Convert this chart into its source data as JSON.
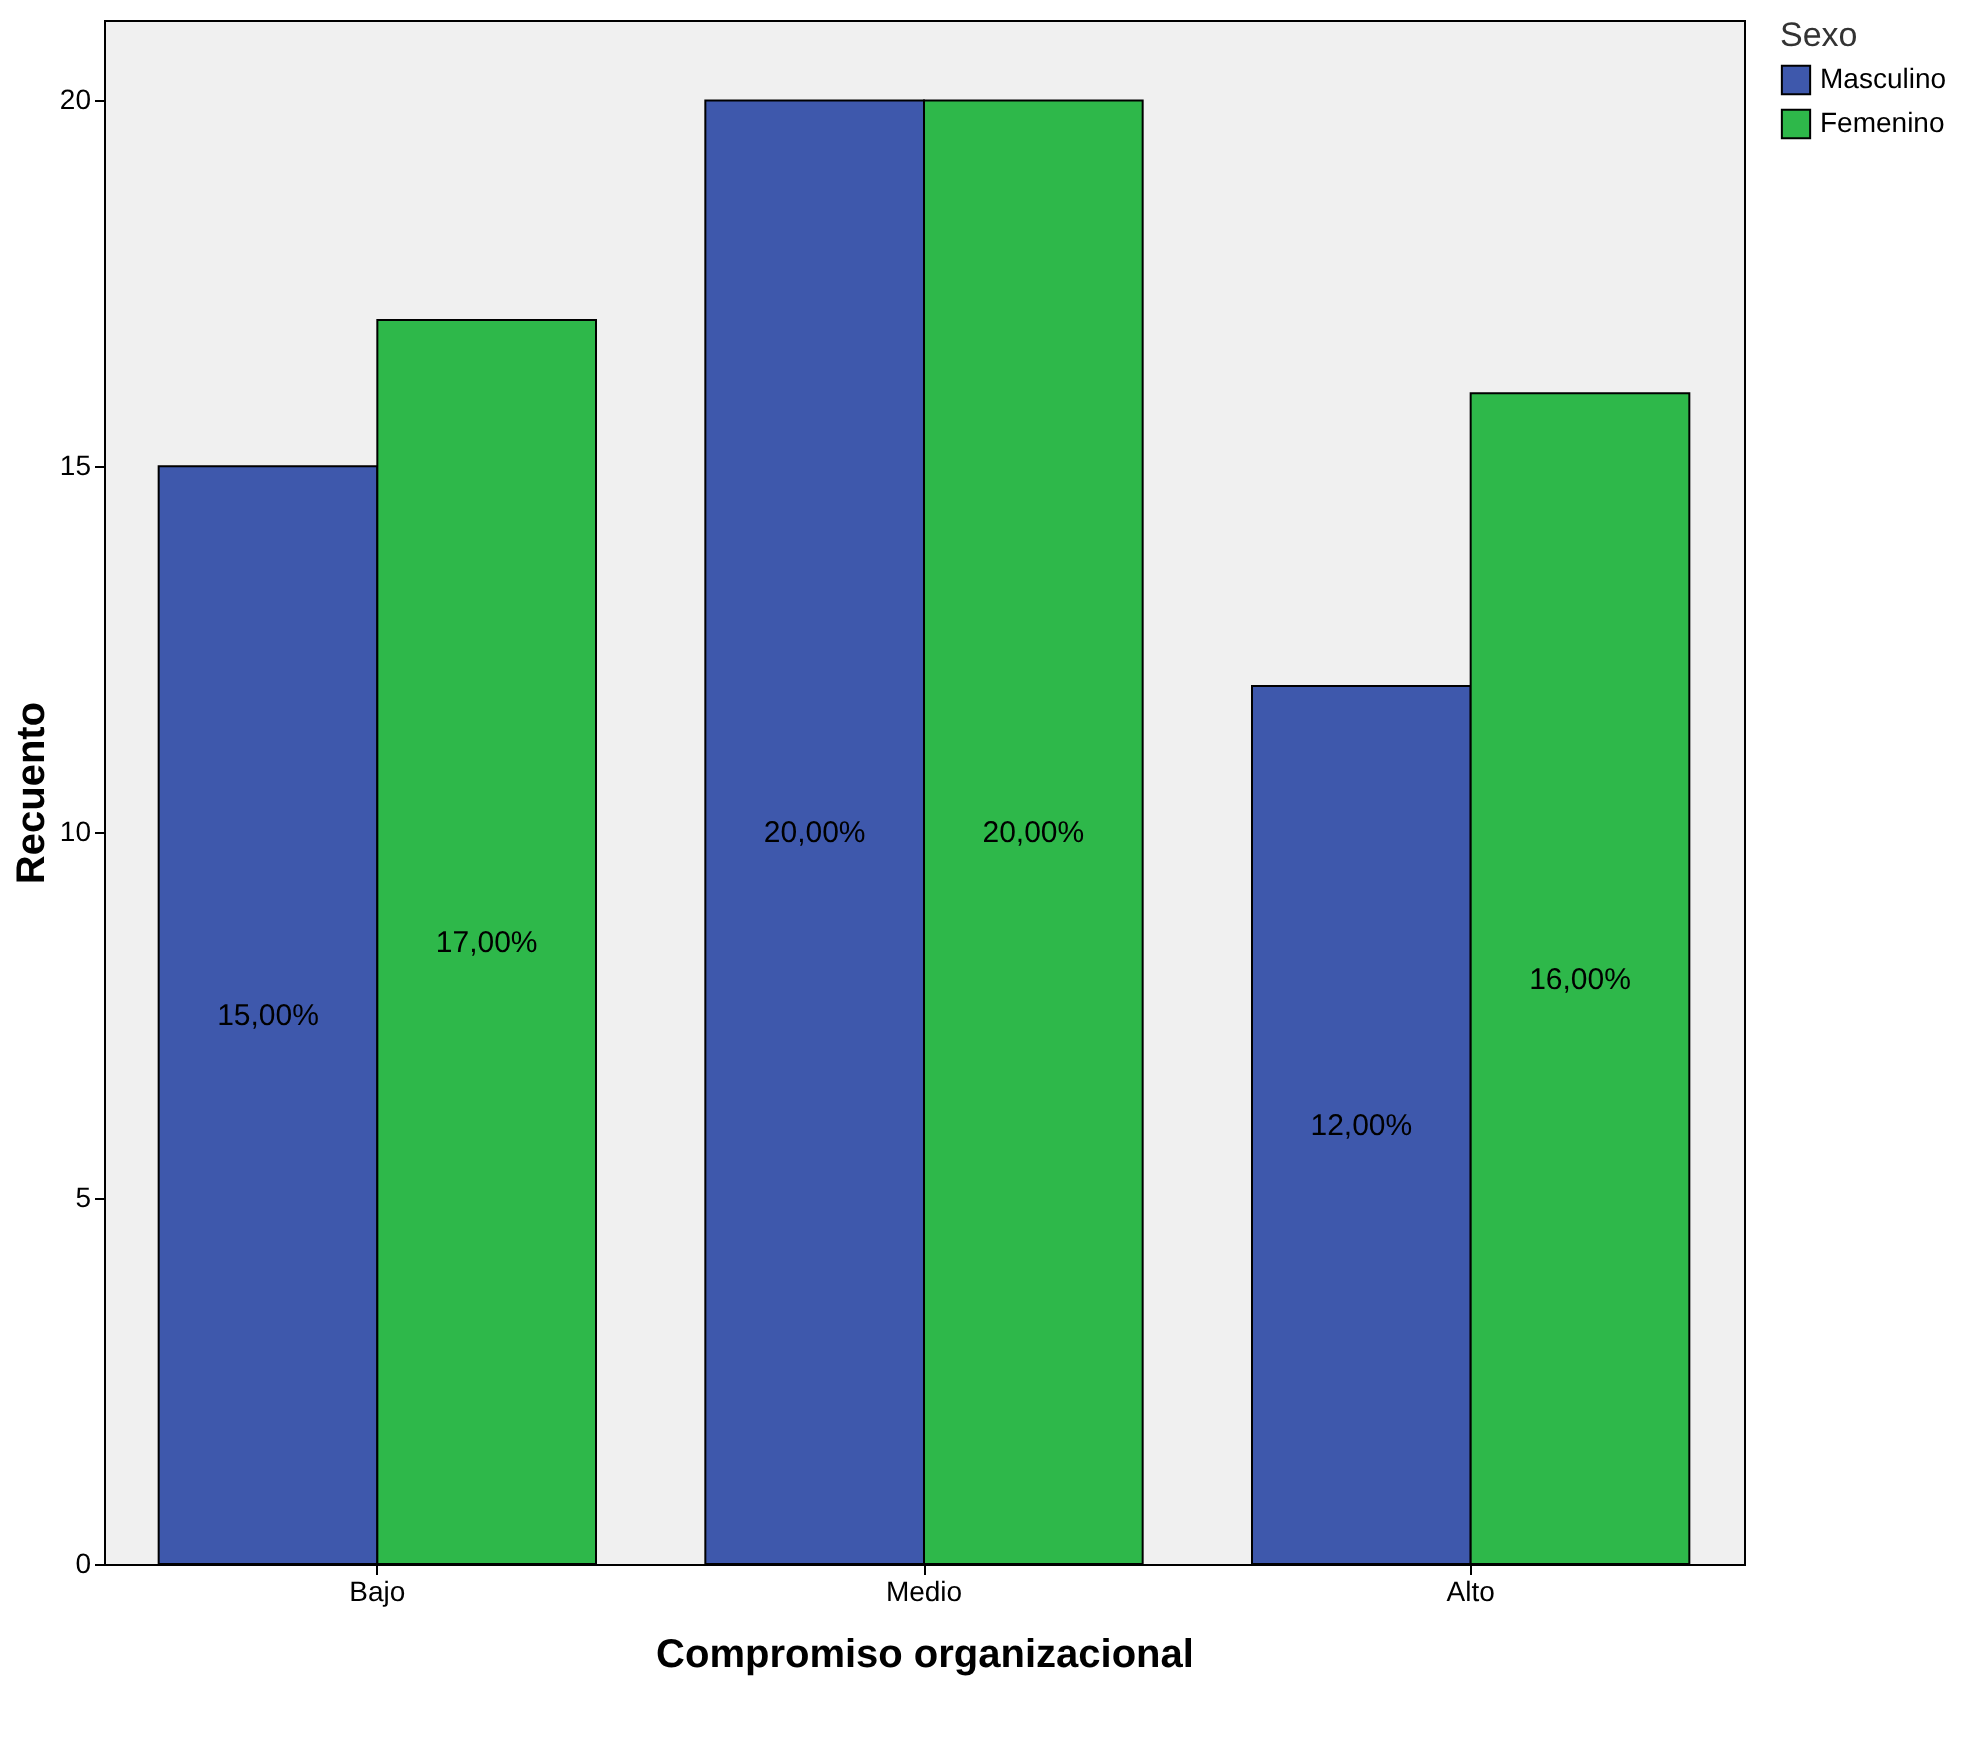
{
  "chart_data": {
    "type": "bar",
    "xlabel": "Compromiso organizacional",
    "ylabel": "Recuento",
    "legend_title": "Sexo",
    "legend": "top right",
    "categories": [
      "Bajo",
      "Medio",
      "Alto"
    ],
    "ylim": [
      0,
      21.1
    ],
    "yticks": [
      0,
      5,
      10,
      15,
      20
    ],
    "grid": false,
    "series": [
      {
        "name": "Masculino",
        "color": "#3e58ac",
        "values": [
          15,
          20,
          12
        ],
        "value_labels": [
          "15,00%",
          "20,00%",
          "12,00%"
        ]
      },
      {
        "name": "Femenino",
        "color": "#2eb84a",
        "values": [
          17,
          20,
          16
        ],
        "value_labels": [
          "17,00%",
          "20,00%",
          "16,00%"
        ]
      }
    ]
  }
}
